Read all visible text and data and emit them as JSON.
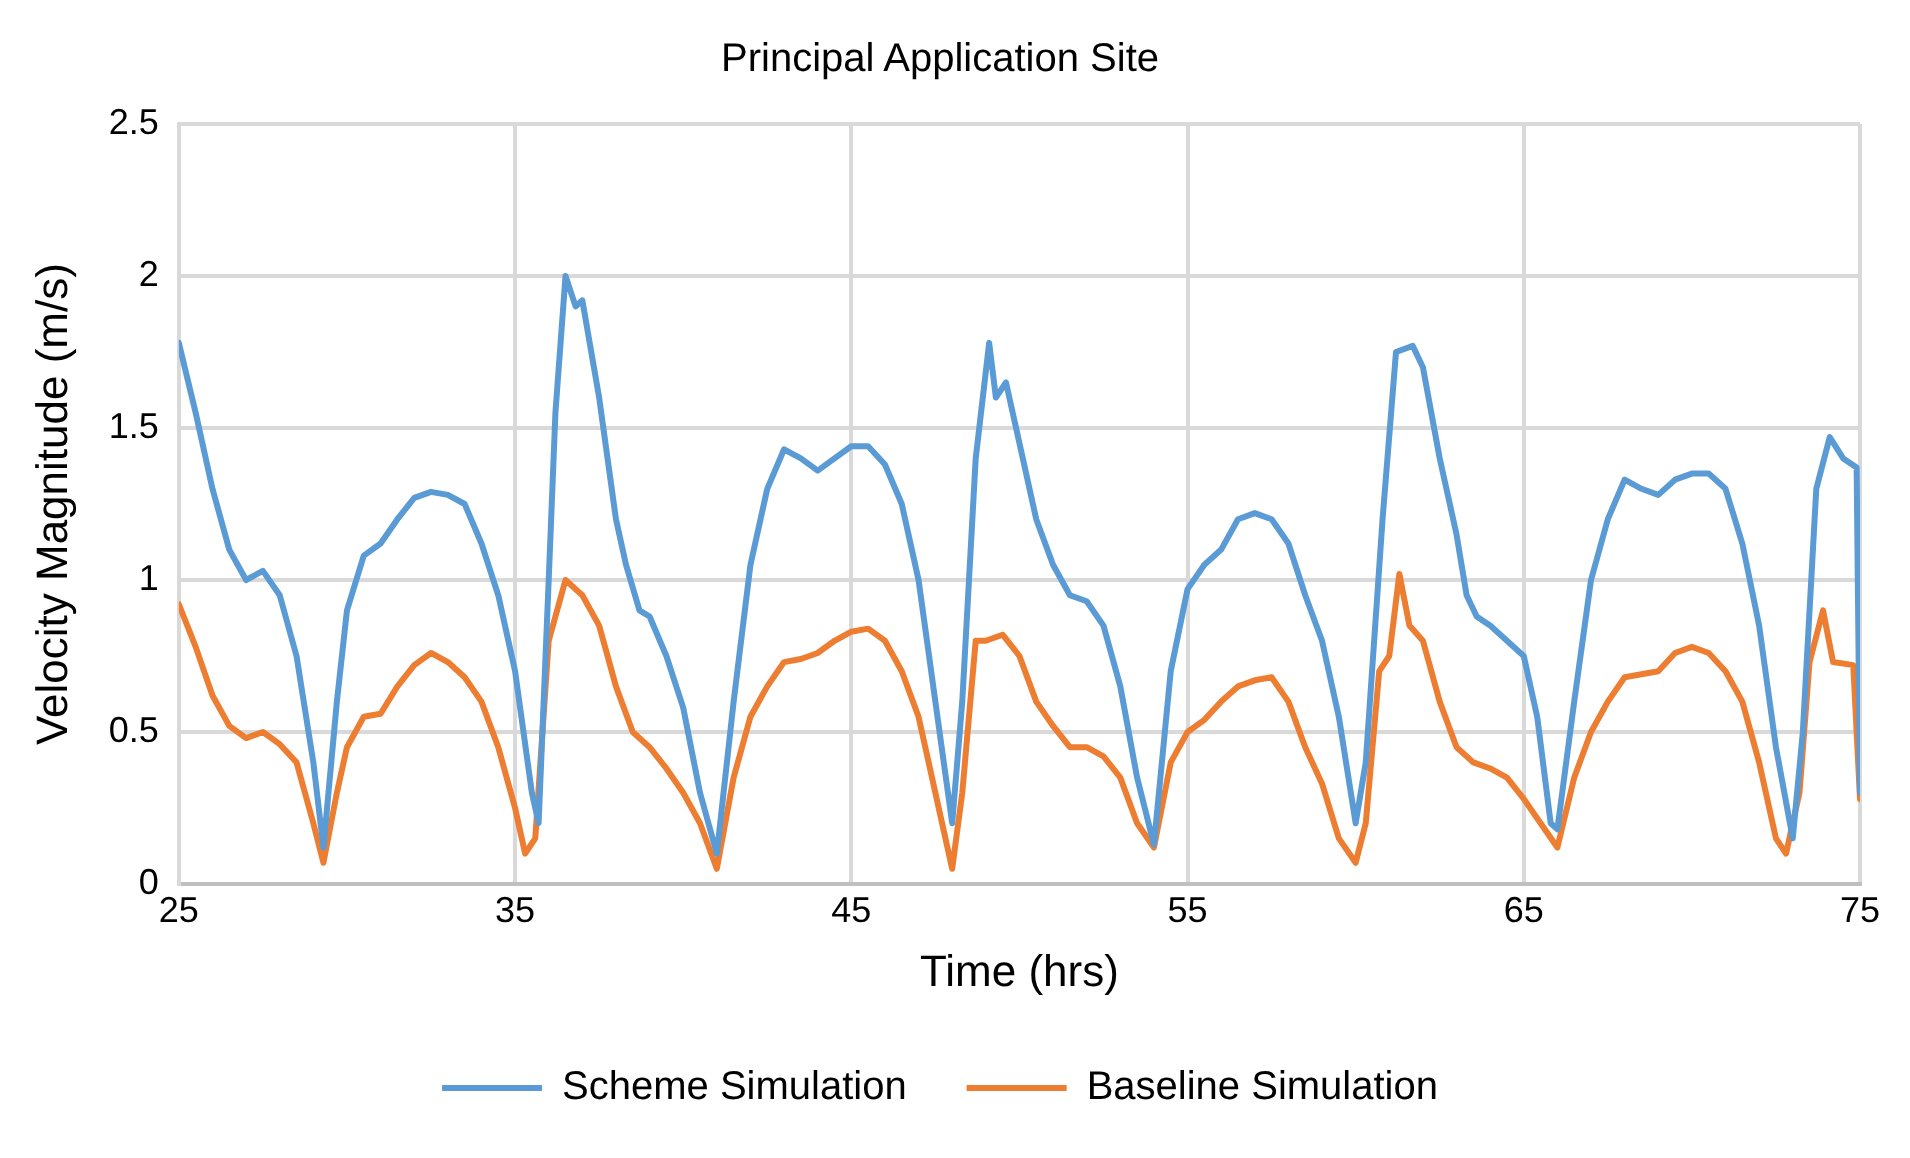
{
  "chart_data": {
    "type": "line",
    "title": "Principal Application Site",
    "xlabel": "Time (hrs)",
    "ylabel": "Velocity Magnitude (m/s)",
    "xlim": [
      25,
      75
    ],
    "xticks": [
      25,
      35,
      45,
      55,
      65,
      75
    ],
    "ylim": [
      0,
      2.5
    ],
    "yticks": [
      0,
      0.5,
      1,
      1.5,
      2,
      2.5
    ],
    "grid": true,
    "legend": "bottom",
    "marker": "none",
    "line_style": "solid",
    "series": [
      {
        "name": "Scheme Simulation",
        "color": "#5b9bd5",
        "x": [
          25,
          25.5,
          26,
          26.5,
          27,
          27.5,
          28,
          28.5,
          29,
          29.3,
          29.7,
          30,
          30.5,
          31,
          31.5,
          32,
          32.5,
          33,
          33.5,
          34,
          34.5,
          35,
          35.5,
          35.7,
          36,
          36.2,
          36.5,
          36.8,
          37,
          37.5,
          38,
          38.3,
          38.7,
          39,
          39.5,
          40,
          40.5,
          41,
          41.5,
          42,
          42.5,
          43,
          43.5,
          44,
          44.5,
          45,
          45.5,
          46,
          46.5,
          47,
          47.5,
          48,
          48.3,
          48.7,
          49.1,
          49.3,
          49.6,
          50,
          50.5,
          51,
          51.5,
          52,
          52.5,
          53,
          53.5,
          54,
          54.5,
          55,
          55.5,
          56,
          56.5,
          57,
          57.5,
          58,
          58.5,
          59,
          59.5,
          60,
          60.3,
          60.8,
          61.2,
          61.7,
          62,
          62.5,
          63,
          63.3,
          63.6,
          64,
          64.5,
          65,
          65.4,
          65.8,
          66,
          66.5,
          67,
          67.5,
          68,
          68.5,
          69,
          69.5,
          70,
          70.5,
          71,
          71.5,
          72,
          72.5,
          73,
          73.3,
          73.7,
          74.1,
          74.5,
          74.9,
          75
        ],
        "values": [
          1.78,
          1.55,
          1.3,
          1.1,
          1.0,
          1.03,
          0.95,
          0.75,
          0.4,
          0.12,
          0.6,
          0.9,
          1.08,
          1.12,
          1.2,
          1.27,
          1.29,
          1.28,
          1.25,
          1.12,
          0.95,
          0.7,
          0.3,
          0.2,
          1.0,
          1.55,
          2.0,
          1.9,
          1.92,
          1.6,
          1.2,
          1.05,
          0.9,
          0.88,
          0.75,
          0.58,
          0.3,
          0.1,
          0.6,
          1.05,
          1.3,
          1.43,
          1.4,
          1.36,
          1.4,
          1.44,
          1.44,
          1.38,
          1.25,
          1.0,
          0.6,
          0.2,
          0.6,
          1.4,
          1.78,
          1.6,
          1.65,
          1.45,
          1.2,
          1.05,
          0.95,
          0.93,
          0.85,
          0.65,
          0.35,
          0.13,
          0.7,
          0.97,
          1.05,
          1.1,
          1.2,
          1.22,
          1.2,
          1.12,
          0.95,
          0.8,
          0.55,
          0.2,
          0.4,
          1.2,
          1.75,
          1.77,
          1.7,
          1.4,
          1.15,
          0.95,
          0.88,
          0.85,
          0.8,
          0.75,
          0.55,
          0.2,
          0.18,
          0.6,
          1.0,
          1.2,
          1.33,
          1.3,
          1.28,
          1.33,
          1.35,
          1.35,
          1.3,
          1.12,
          0.85,
          0.45,
          0.15,
          0.5,
          1.3,
          1.47,
          1.4,
          1.37,
          0.3
        ]
      },
      {
        "name": "Baseline Simulation",
        "color": "#ed7d31",
        "x": [
          25,
          25.5,
          26,
          26.5,
          27,
          27.5,
          28,
          28.5,
          29,
          29.3,
          29.7,
          30,
          30.5,
          31,
          31.5,
          32,
          32.5,
          33,
          33.5,
          34,
          34.5,
          35,
          35.3,
          35.6,
          36,
          36.5,
          37,
          37.5,
          38,
          38.5,
          39,
          39.5,
          40,
          40.5,
          41,
          41.5,
          42,
          42.5,
          43,
          43.5,
          44,
          44.5,
          45,
          45.5,
          46,
          46.5,
          47,
          47.5,
          48,
          48.3,
          48.7,
          49,
          49.5,
          50,
          50.5,
          51,
          51.5,
          52,
          52.5,
          53,
          53.5,
          54,
          54.5,
          55,
          55.5,
          56,
          56.5,
          57,
          57.5,
          58,
          58.5,
          59,
          59.5,
          60,
          60.3,
          60.7,
          61,
          61.3,
          61.6,
          62,
          62.5,
          63,
          63.5,
          64,
          64.5,
          65,
          65.5,
          66,
          66.5,
          67,
          67.5,
          68,
          68.5,
          69,
          69.5,
          70,
          70.5,
          71,
          71.5,
          72,
          72.5,
          72.8,
          73.2,
          73.5,
          73.9,
          74.2,
          74.8,
          75
        ],
        "values": [
          0.92,
          0.78,
          0.62,
          0.52,
          0.48,
          0.5,
          0.46,
          0.4,
          0.2,
          0.07,
          0.3,
          0.45,
          0.55,
          0.56,
          0.65,
          0.72,
          0.76,
          0.73,
          0.68,
          0.6,
          0.45,
          0.25,
          0.1,
          0.15,
          0.8,
          1.0,
          0.95,
          0.85,
          0.65,
          0.5,
          0.45,
          0.38,
          0.3,
          0.2,
          0.05,
          0.35,
          0.55,
          0.65,
          0.73,
          0.74,
          0.76,
          0.8,
          0.83,
          0.84,
          0.8,
          0.7,
          0.55,
          0.3,
          0.05,
          0.3,
          0.8,
          0.8,
          0.82,
          0.75,
          0.6,
          0.52,
          0.45,
          0.45,
          0.42,
          0.35,
          0.2,
          0.12,
          0.4,
          0.5,
          0.54,
          0.6,
          0.65,
          0.67,
          0.68,
          0.6,
          0.45,
          0.33,
          0.15,
          0.07,
          0.2,
          0.7,
          0.75,
          1.02,
          0.85,
          0.8,
          0.6,
          0.45,
          0.4,
          0.38,
          0.35,
          0.28,
          0.2,
          0.12,
          0.35,
          0.5,
          0.6,
          0.68,
          0.69,
          0.7,
          0.76,
          0.78,
          0.76,
          0.7,
          0.6,
          0.4,
          0.15,
          0.1,
          0.3,
          0.73,
          0.9,
          0.73,
          0.72,
          0.28
        ]
      }
    ]
  }
}
